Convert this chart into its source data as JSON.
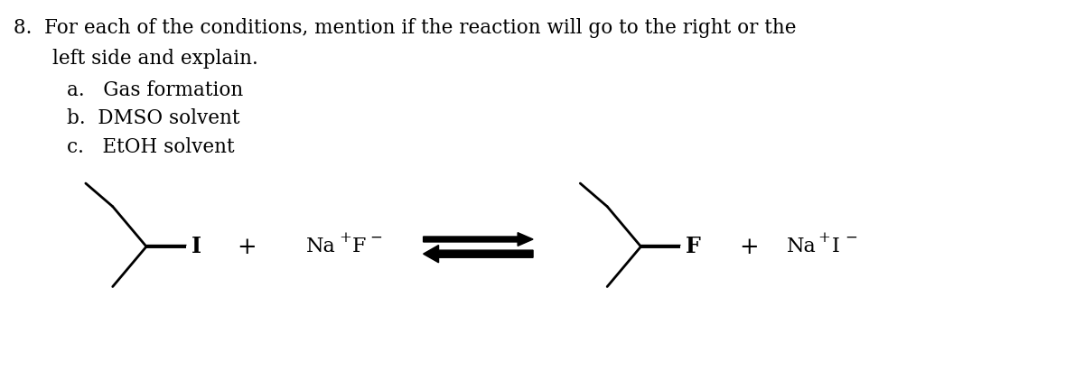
{
  "background_color": "#ffffff",
  "text_color": "#000000",
  "title_line1": "8.  For each of the conditions, mention if the reaction will go to the right or the",
  "title_line2": "    left side and explain.",
  "item_a": "a.   Gas formation",
  "item_b": "b.  DMSO solvent",
  "item_c": "c.   EtOH solvent",
  "nacl_left": "Na⁺F⁻",
  "nacl_right": "Na⁺I⁻",
  "font_size_text": 15.5,
  "font_size_chem": 15,
  "fig_width": 12.0,
  "fig_height": 4.12,
  "lmx": 1.6,
  "lmy": 1.38,
  "rmx": 7.1,
  "rmy": 1.38,
  "scale": 0.5
}
